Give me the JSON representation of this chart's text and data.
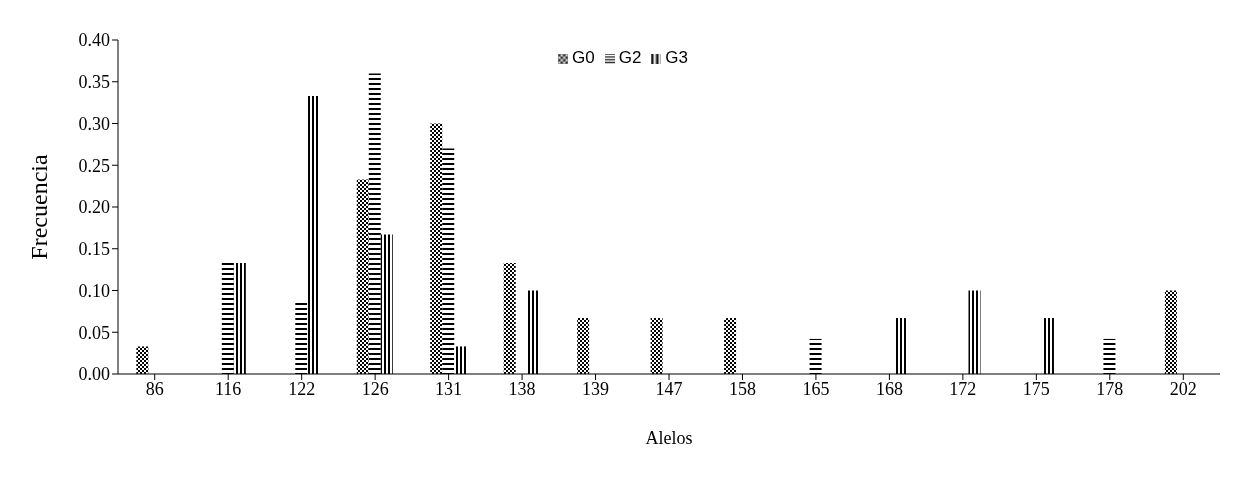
{
  "chart_data": {
    "type": "bar",
    "xlabel": "Alelos",
    "ylabel": "Frecuencia",
    "categories": [
      "86",
      "116",
      "122",
      "126",
      "131",
      "138",
      "139",
      "147",
      "158",
      "165",
      "168",
      "172",
      "175",
      "178",
      "202"
    ],
    "series": [
      {
        "name": "G0",
        "color": "#000000",
        "values": [
          0.033,
          0,
          0,
          0.233,
          0.3,
          0.133,
          0.067,
          0.067,
          0.067,
          0,
          0,
          0,
          0,
          0,
          0.1
        ]
      },
      {
        "name": "G2",
        "color": "#000000",
        "values": [
          0,
          0.136,
          0.087,
          0.36,
          0.27,
          0,
          0,
          0,
          0,
          0.042,
          0,
          0,
          0,
          0.042,
          0
        ]
      },
      {
        "name": "G3",
        "color": "#000000",
        "values": [
          0,
          0.133,
          0.333,
          0.167,
          0.033,
          0.1,
          0,
          0,
          0,
          0,
          0.067,
          0.1,
          0.067,
          0,
          0
        ]
      }
    ],
    "ylim": [
      0,
      0.4
    ],
    "yticks": [
      {
        "value": 0,
        "label": "0.00"
      },
      {
        "value": 0.05,
        "label": "0.05"
      },
      {
        "value": 0.1,
        "label": "0.10"
      },
      {
        "value": 0.15,
        "label": "0.15"
      },
      {
        "value": 0.2,
        "label": "0.20"
      },
      {
        "value": 0.25,
        "label": "0.25"
      },
      {
        "value": 0.3,
        "label": "0.30"
      },
      {
        "value": 0.35,
        "label": "0.35"
      },
      {
        "value": 0.4,
        "label": "0.40"
      }
    ],
    "grid": false,
    "legend": "top"
  }
}
